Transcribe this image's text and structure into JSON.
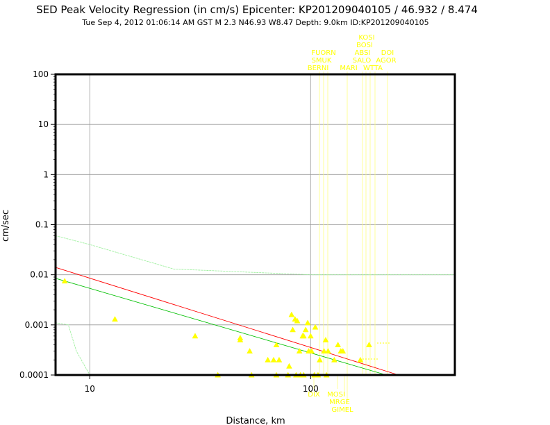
{
  "chart_data": {
    "type": "scatter",
    "title": "SED Peak Velocity Regression (in cm/s) Epicenter: KP201209040105 / 46.932 / 8.474",
    "subtitle": "Tue Sep  4, 2012 01:06:14 AM GST   M 2.3   N46.93 W8.47   Depth: 9.0km   ID:KP201209040105",
    "xlabel": "Distance, km",
    "ylabel": "cm/sec",
    "x_scale": "log",
    "y_scale": "log",
    "xlim": [
      7,
      450
    ],
    "ylim": [
      0.0001,
      100
    ],
    "x_ticks": [
      "10",
      "100"
    ],
    "y_ticks": [
      "100",
      "10",
      "1",
      "0.1",
      "0.01",
      "0.001",
      "0.0001"
    ],
    "grid": true,
    "colors": {
      "points": "#ffff00",
      "regression_red": "#ff0000",
      "regression_green": "#00c000",
      "bounds": "#a0f0a0",
      "station_labels": "#ffff00"
    },
    "series": [
      {
        "type": "line",
        "style": "red",
        "x": [
          7,
          250
        ],
        "y": [
          0.014,
          0.0001
        ]
      },
      {
        "type": "line",
        "style": "green",
        "x": [
          7,
          220
        ],
        "y": [
          0.0085,
          0.0001
        ]
      },
      {
        "type": "line",
        "style": "bound-upper",
        "x": [
          7,
          10,
          24,
          100,
          450
        ],
        "y": [
          0.06,
          0.04,
          0.013,
          0.01,
          0.01
        ]
      },
      {
        "type": "line",
        "style": "bound-lower",
        "x": [
          7,
          8,
          8.7,
          10
        ],
        "y": [
          0.0011,
          0.001,
          0.0003,
          0.0001
        ]
      },
      {
        "type": "scatter",
        "x": [
          7.7,
          13,
          30,
          48,
          48,
          53,
          64,
          68,
          70,
          72,
          80,
          82,
          83,
          85,
          87,
          89,
          92,
          93,
          95,
          97,
          98,
          100,
          101,
          105,
          110,
          115,
          117,
          120,
          128,
          133,
          137,
          140,
          168,
          184,
          38,
          54,
          70,
          79,
          86,
          90,
          93,
          104,
          108,
          118
        ],
        "y": [
          0.0075,
          0.0013,
          0.0006,
          0.00055,
          0.0005,
          0.0003,
          0.0002,
          0.0002,
          0.0004,
          0.0002,
          0.00015,
          0.0016,
          0.0008,
          0.0013,
          0.0012,
          0.0003,
          0.0006,
          0.0006,
          0.0008,
          0.0011,
          0.0003,
          0.0006,
          0.0003,
          0.0009,
          0.0002,
          0.0003,
          0.0005,
          0.0003,
          0.0002,
          0.0004,
          0.0003,
          0.0003,
          0.0002,
          0.0004,
          0.0001,
          0.0001,
          0.0001,
          0.0001,
          0.0001,
          0.0001,
          0.0001,
          0.0001,
          0.0001,
          0.0001
        ]
      }
    ],
    "station_labels_top": [
      "KOSI",
      "BOSI",
      "FUORN",
      "ABSI",
      "DOI",
      "SMUK",
      "SALO",
      "AGOR",
      "BERNI",
      "MARI",
      "WTTA"
    ],
    "station_labels_bottom": [
      "DIX",
      "MOSI",
      "MRGE",
      "GIMEL"
    ]
  }
}
